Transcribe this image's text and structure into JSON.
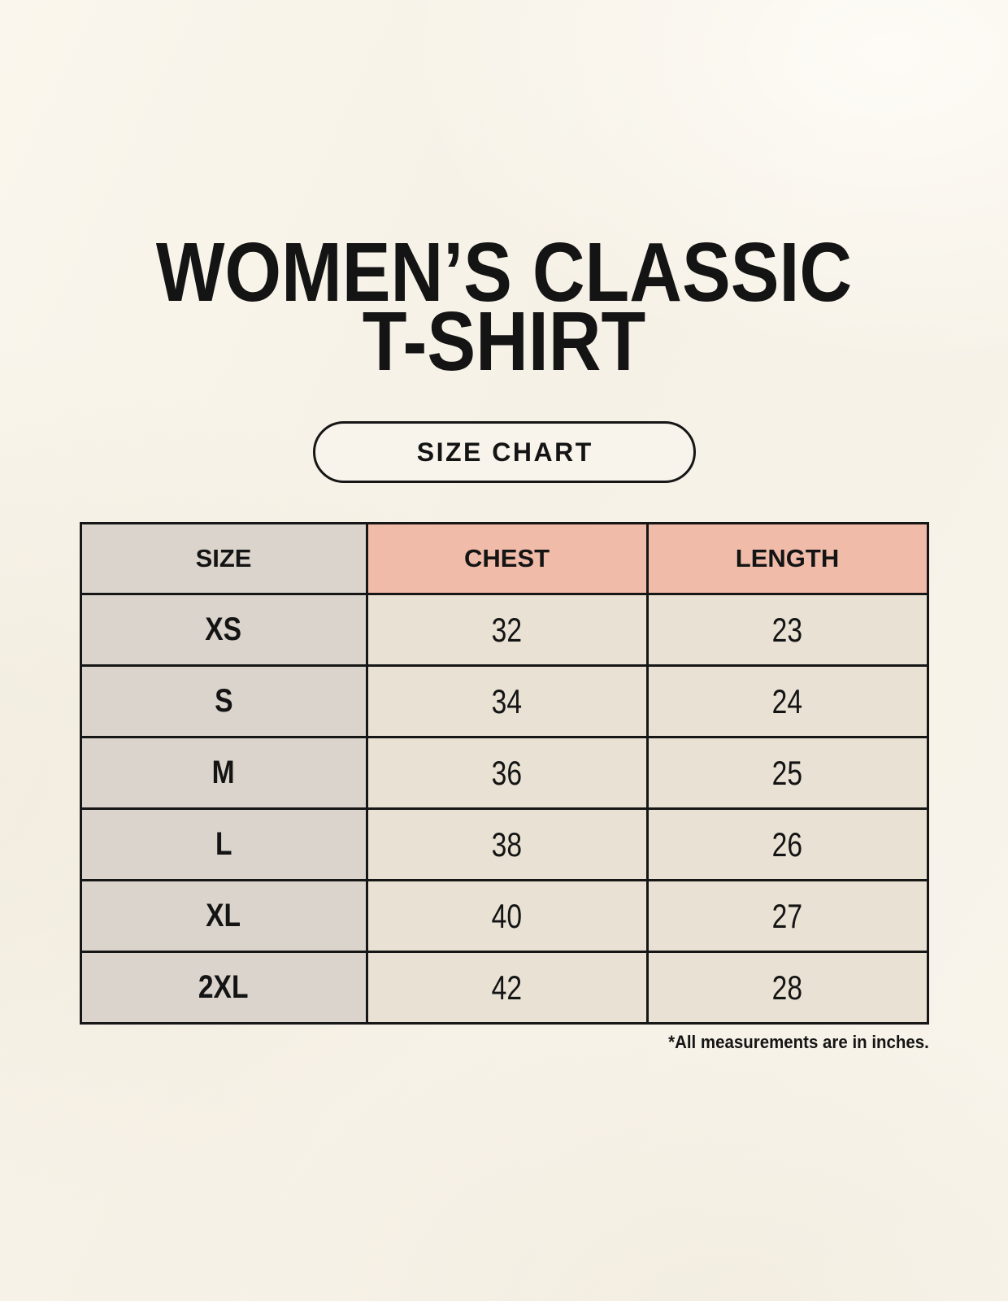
{
  "header": {
    "title_line1": "WOMEN’S CLASSIC",
    "title_line2": "T-SHIRT",
    "badge_label": "SIZE CHART"
  },
  "table": {
    "headers": [
      "SIZE",
      "CHEST",
      "LENGTH"
    ],
    "rows": [
      {
        "size": "XS",
        "chest": "32",
        "length": "23"
      },
      {
        "size": "S",
        "chest": "34",
        "length": "24"
      },
      {
        "size": "M",
        "chest": "36",
        "length": "25"
      },
      {
        "size": "L",
        "chest": "38",
        "length": "26"
      },
      {
        "size": "XL",
        "chest": "40",
        "length": "27"
      },
      {
        "size": "2XL",
        "chest": "42",
        "length": "28"
      }
    ]
  },
  "footnote": "*All measurements are in inches.",
  "colors": {
    "background": "#F7F3E9",
    "size_column_bg": "#DBD4CC",
    "accent_header_bg": "#F1BBA9",
    "data_cell_bg": "#E9E2D4",
    "table_border": "#161616",
    "text": "#141414"
  }
}
